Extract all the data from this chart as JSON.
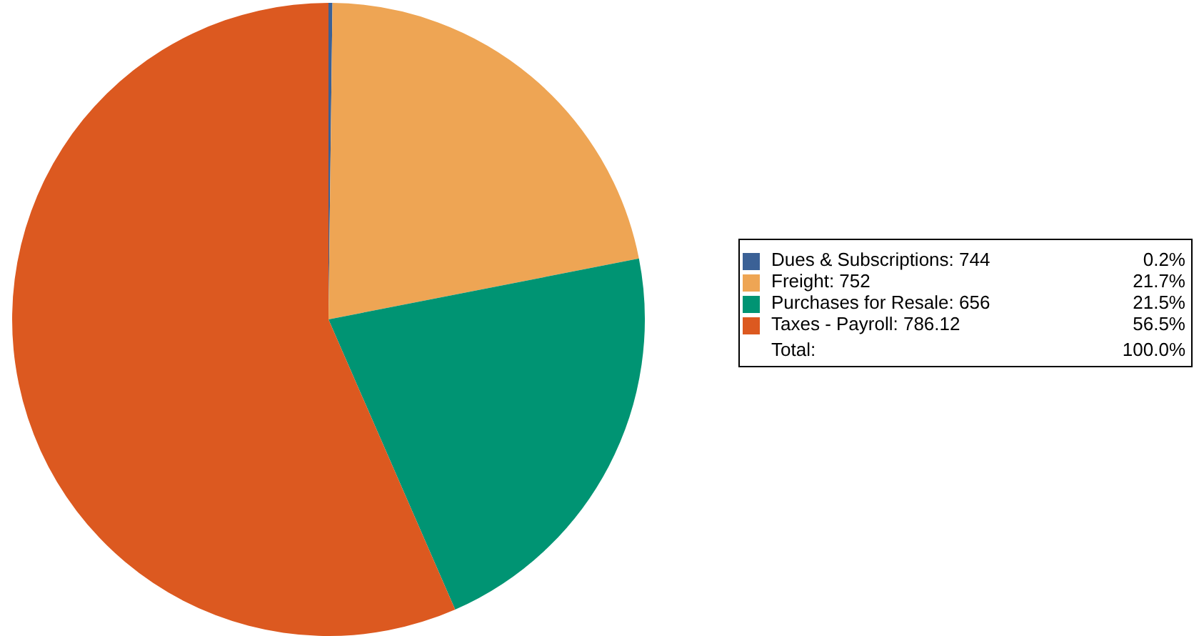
{
  "chart_data": {
    "type": "pie",
    "categories": [
      "Dues & Subscriptions: 744",
      "Freight: 752",
      "Purchases for Resale: 656",
      "Taxes - Payroll: 786.12"
    ],
    "values": [
      0.2,
      21.7,
      21.5,
      56.5
    ],
    "colors": [
      "#3b6196",
      "#eea554",
      "#009473",
      "#dc5920"
    ],
    "value_labels": [
      "0.2%",
      "21.7%",
      "21.5%",
      "56.5%"
    ],
    "annotations": [
      "Total:",
      "100.0%"
    ],
    "legend": "right"
  }
}
